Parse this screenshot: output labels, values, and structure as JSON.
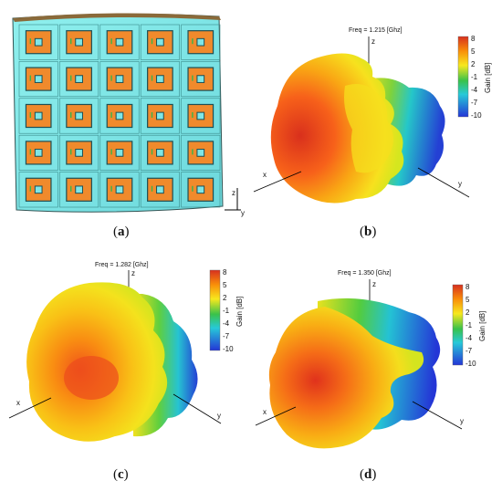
{
  "panels": {
    "a": {
      "label": "a",
      "axes": {
        "z": "z",
        "y": "y"
      }
    },
    "b": {
      "label": "b",
      "freq": "Freq = 1.215 [Ghz]"
    },
    "c": {
      "label": "c",
      "freq": "Freq = 1.282 [Ghz]"
    },
    "d": {
      "label": "d",
      "freq": "Freq = 1.350 [Ghz]"
    }
  },
  "axes_labels": {
    "x": "x",
    "y": "y",
    "z": "z"
  },
  "colorbar": {
    "title": "Gain [dB]",
    "ticks": [
      "8",
      "5",
      "2",
      "-1",
      "-4",
      "-7",
      "-10"
    ],
    "colors": {
      "high": "#d7301f",
      "orange": "#f98e09",
      "yellow": "#f7e81e",
      "green": "#39c24a",
      "cyan": "#27c9d8",
      "blue": "#2436d6"
    }
  },
  "array": {
    "rows": 5,
    "cols": 5,
    "substrate_color": "#7fe6e6",
    "patch_color": "#f08a2c"
  }
}
